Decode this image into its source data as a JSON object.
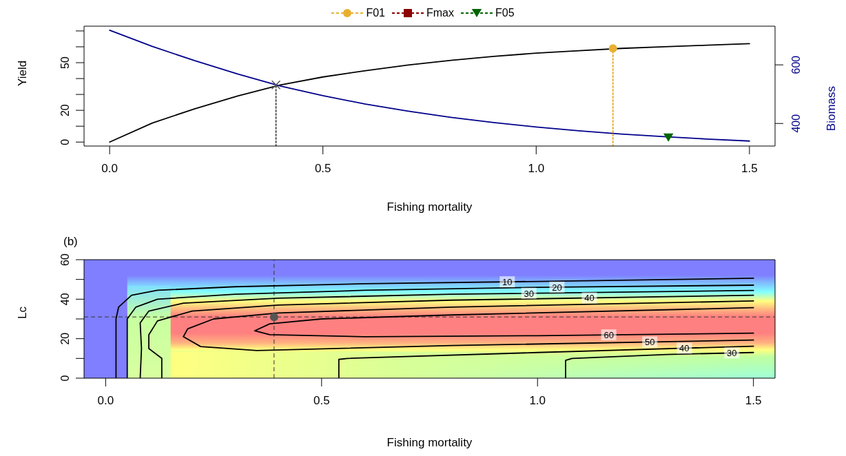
{
  "chart_data": [
    {
      "type": "line",
      "xlabel": "Fishing mortality",
      "ylabel": "Yield",
      "y2label": "Biomass",
      "xlim": [
        -0.06,
        1.56
      ],
      "xticks": [
        {
          "value": 0,
          "label": "0.0"
        },
        {
          "value": 0.5,
          "label": "0.5"
        },
        {
          "value": 1,
          "label": "1.0"
        },
        {
          "value": 1.5,
          "label": "1.5"
        }
      ],
      "ylim": [
        -2.5,
        73
      ],
      "yticks": [
        0,
        {
          "value": 10,
          "label": null
        },
        20,
        {
          "value": 30,
          "label": null
        },
        {
          "value": 40,
          "label": null
        },
        50,
        {
          "value": 60,
          "label": null
        },
        {
          "value": 70,
          "label": null
        }
      ],
      "y2lim": [
        323,
        732
      ],
      "y2ticks": [
        400,
        600
      ],
      "legend": "top",
      "x": [
        0,
        0.1,
        0.2,
        0.3,
        0.4,
        0.5,
        0.6,
        0.7,
        0.8,
        0.9,
        1.0,
        1.1,
        1.2,
        1.3,
        1.4,
        1.5
      ],
      "series": [
        {
          "color": "#000000",
          "values": [
            0,
            12,
            21,
            29,
            36,
            41,
            45,
            48.5,
            51.5,
            54,
            56,
            57.5,
            59,
            60,
            61,
            62
          ]
        },
        {
          "color": "#00008b",
          "axis": "y2",
          "values": [
            718,
            663,
            614,
            569,
            528,
            495,
            466,
            442,
            421,
            403,
            388,
            375,
            364,
            355,
            347,
            340
          ]
        },
        {
          "type": "line",
          "color": "#555555",
          "marker": "cross",
          "line_style": "dotted",
          "x": [
            0.39,
            0.39
          ],
          "values": [
            -2.5,
            36
          ]
        },
        {
          "name": "F01",
          "type": "line",
          "color": "#e8b030",
          "marker": "circle",
          "line_style": "dotted",
          "x": [
            1.18,
            1.18
          ],
          "values": [
            -2.5,
            59
          ]
        },
        {
          "name": "Fmax",
          "type": "scatter",
          "color": "#8b0000",
          "marker": "square",
          "values": [
            null,
            null,
            null,
            null,
            null,
            null,
            null,
            null,
            null,
            null,
            null,
            null,
            null,
            null,
            null,
            null
          ]
        },
        {
          "name": "F05",
          "type": "scatter",
          "color": "#006400",
          "marker": "triangle",
          "axis": "y2",
          "x": [
            1.31
          ],
          "values": [
            352
          ]
        }
      ]
    },
    {
      "type": "line",
      "title": "(b)",
      "xlabel": "Fishing mortality",
      "ylabel": "Lc",
      "xlim": [
        -0.05,
        1.55
      ],
      "xticks": [
        {
          "value": 0,
          "label": "0.0"
        },
        {
          "value": 0.5,
          "label": "0.5"
        },
        {
          "value": 1,
          "label": "1.0"
        },
        {
          "value": 1.5,
          "label": "1.5"
        }
      ],
      "ylim": [
        0,
        60
      ],
      "yticks": [
        0,
        {
          "value": 10,
          "label": null
        },
        20,
        {
          "value": 30,
          "label": null
        },
        40,
        {
          "value": 50,
          "label": null
        },
        60
      ],
      "ref_lines": [
        {
          "axis": "x",
          "value": 0.39,
          "color": "#333333",
          "line_style": "dashed"
        },
        {
          "axis": "y",
          "value": 31,
          "color": "#333333",
          "line_style": "dashed"
        }
      ],
      "series": [
        {
          "name": "10",
          "color": "#000000",
          "x": [
            0.024,
            0.024,
            0.03,
            0.06,
            0.12,
            0.3,
            0.6,
            1.0,
            1.5
          ],
          "values": [
            0,
            30,
            36,
            42,
            44.5,
            46.3,
            47.8,
            49,
            50.6
          ]
        },
        {
          "name": "20",
          "color": "#000000",
          "x": [
            0.05,
            0.05,
            0.07,
            0.12,
            0.3,
            0.6,
            1.0,
            1.5
          ],
          "values": [
            0,
            30,
            36,
            40,
            42.5,
            44.5,
            46,
            47.1
          ]
        },
        {
          "name": "30",
          "color": "#000000",
          "x": [
            0.08,
            0.083,
            0.08,
            0.1,
            0.18,
            0.4,
            0.8,
            1.5
          ],
          "values": [
            0,
            15,
            28,
            34,
            38,
            40.5,
            42.5,
            44.4
          ]
        },
        {
          "name": "40",
          "color": "#000000",
          "x": [
            0.13,
            0.13,
            0.1,
            0.1,
            0.12,
            0.2,
            0.4,
            0.8,
            1.5
          ],
          "values": [
            0,
            10,
            15,
            22,
            29,
            34,
            37,
            39.5,
            42
          ]
        },
        {
          "name": "60",
          "color": "#000000",
          "x": [
            1.5,
            0.8,
            0.5,
            0.38,
            0.345,
            0.38,
            0.6,
            1.0,
            1.5
          ],
          "values": [
            35.7,
            32,
            30,
            27.5,
            24,
            22,
            21,
            21.5,
            22.8
          ]
        },
        {
          "name": "50",
          "color": "#000000",
          "x": [
            1.5,
            0.8,
            0.4,
            0.25,
            0.19,
            0.18,
            0.22,
            0.35,
            0.8,
            1.5
          ],
          "values": [
            39.1,
            36,
            33,
            30,
            25,
            21,
            16,
            14,
            16.5,
            19.3
          ]
        },
        {
          "name": "40",
          "color": "#000000",
          "x": [
            0.54,
            0.54,
            0.56,
            1.0,
            1.5
          ],
          "values": [
            0,
            9.5,
            10,
            13,
            16.2
          ]
        },
        {
          "name": "30",
          "color": "#000000",
          "x": [
            1.065,
            1.065,
            1.08,
            1.3,
            1.5
          ],
          "values": [
            0,
            9,
            10,
            12,
            13
          ]
        },
        {
          "type": "scatter",
          "color": "#555555",
          "marker": "circle",
          "x": [
            0.39
          ],
          "values": [
            31
          ]
        }
      ]
    }
  ]
}
